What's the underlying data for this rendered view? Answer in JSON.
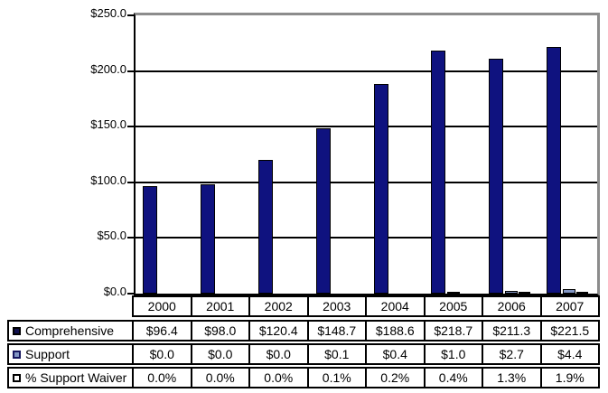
{
  "figure": {
    "background": "#ffffff"
  },
  "chart_data": {
    "type": "bar",
    "title": "",
    "xlabel": "",
    "ylabel": "",
    "categories": [
      "2000",
      "2001",
      "2002",
      "2003",
      "2004",
      "2005",
      "2006",
      "2007"
    ],
    "series": [
      {
        "name": "Comprehensive",
        "values": [
          96.4,
          98.0,
          120.4,
          148.7,
          188.6,
          218.7,
          211.3,
          221.5
        ],
        "unit": "$M",
        "color": "#0f127f",
        "border_color": "#000000",
        "legend_marker": {
          "fill": "#10104d",
          "border": "#000000"
        }
      },
      {
        "name": "Support",
        "values": [
          0.0,
          0.0,
          0.0,
          0.1,
          0.4,
          1.0,
          2.7,
          4.4
        ],
        "unit": "$M",
        "color": "#8296c4",
        "border_color": "#000000",
        "legend_marker": {
          "fill": "#8296c4",
          "border": "#16165e"
        }
      },
      {
        "name": "% Support Waiver",
        "values": [
          0.0,
          0.0,
          0.0,
          0.1,
          0.2,
          0.4,
          1.3,
          1.9
        ],
        "unit": "%",
        "color": "#ffffff",
        "border_color": "#000000",
        "legend_marker": {
          "fill": "#ffffff",
          "border": "#000000"
        }
      }
    ],
    "ylim": [
      0,
      250
    ],
    "ytick_step": 50,
    "y_tick_labels": [
      "$250.0",
      "$200.0",
      "$150.0",
      "$100.0",
      "$50.0",
      "$0.0"
    ],
    "grid": true,
    "gridline_color": "#000000",
    "axis_color": "#000000",
    "plot_top_right_border_color": "#8c8c8c",
    "legend_position": "table-rows-left"
  },
  "table": {
    "rows": [
      {
        "label": "Comprehensive",
        "cells": [
          "$96.4",
          "$98.0",
          "$120.4",
          "$148.7",
          "$188.6",
          "$218.7",
          "$211.3",
          "$221.5"
        ]
      },
      {
        "label": "Support",
        "cells": [
          "$0.0",
          "$0.0",
          "$0.0",
          "$0.1",
          "$0.4",
          "$1.0",
          "$2.7",
          "$4.4"
        ]
      },
      {
        "label": "% Support Waiver",
        "cells": [
          "0.0%",
          "0.0%",
          "0.0%",
          "0.1%",
          "0.2%",
          "0.4%",
          "1.3%",
          "1.9%"
        ]
      }
    ]
  }
}
